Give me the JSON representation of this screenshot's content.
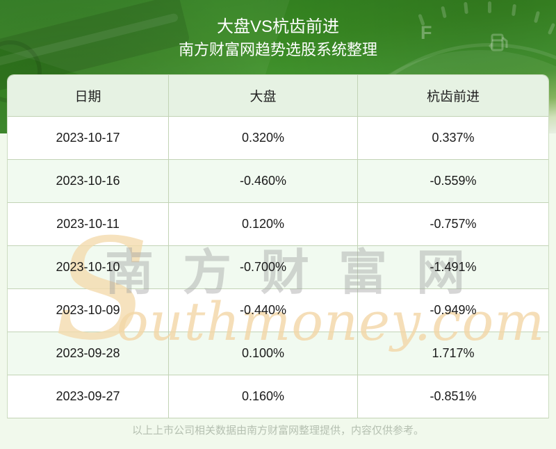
{
  "header": {
    "title": "大盘VS杭齿前进",
    "subtitle": "南方财富网趋势选股系统整理",
    "gauge_label": "F"
  },
  "table": {
    "columns": [
      "日期",
      "大盘",
      "杭齿前进"
    ],
    "rows": [
      [
        "2023-10-17",
        "0.320%",
        "0.337%"
      ],
      [
        "2023-10-16",
        "-0.460%",
        "-0.559%"
      ],
      [
        "2023-10-11",
        "0.120%",
        "-0.757%"
      ],
      [
        "2023-10-10",
        "-0.700%",
        "-1.491%"
      ],
      [
        "2023-10-09",
        "-0.440%",
        "-0.949%"
      ],
      [
        "2023-09-28",
        "0.100%",
        "1.717%"
      ],
      [
        "2023-09-27",
        "0.160%",
        "-0.851%"
      ]
    ]
  },
  "watermark": {
    "initial": "S",
    "cn": "南方财富网",
    "latin": "outhmoney.com"
  },
  "footer": {
    "disclaimer": "以上上市公司相关数据由南方财富网整理提供，内容仅供参考。"
  },
  "colors": {
    "header_green": "#3a8b24",
    "header_green_dark": "#2e7c1e",
    "table_header_bg": "#e6f2e3",
    "alt_row_bg": "#f1faf0",
    "row_bg": "#ffffff",
    "border": "#c2d3b5",
    "page_bg": "#f1f9ec",
    "text": "#1a1a1a",
    "footer_text": "#b5c0b1",
    "watermark_orange": "#f3d7a7",
    "watermark_gray": "#a0a0a0",
    "title_text": "#ffffff"
  }
}
